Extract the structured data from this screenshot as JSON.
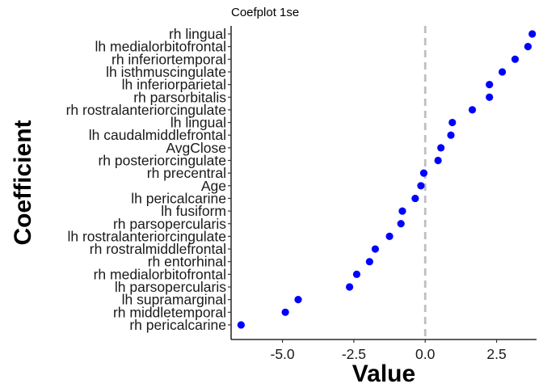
{
  "chart_data": {
    "type": "scatter",
    "title": "Coefplot 1se",
    "xlabel": "Value",
    "ylabel": "Coefficient",
    "xlim": [
      -6.8,
      3.9
    ],
    "x_ticks": [
      -5.0,
      -2.5,
      0.0,
      2.5
    ],
    "x_tick_labels": [
      "-5.0",
      "-2.5",
      "0.0",
      "2.5"
    ],
    "reference_line": {
      "x": 0.0,
      "style": "dashed",
      "color": "#bfbfbf"
    },
    "point_color": "#0000ff",
    "grid": false,
    "legend": "none",
    "categories": [
      "rh lingual",
      "lh medialorbitofrontal",
      "rh inferiortemporal",
      "lh isthmuscingulate",
      "lh inferiorparietal",
      "rh parsorbitalis",
      "rh rostralanteriorcingulate",
      "lh lingual",
      "lh caudalmiddlefrontal",
      "AvgClose",
      "rh posteriorcingulate",
      "rh precentral",
      "Age",
      "lh pericalcarine",
      "lh fusiform",
      "rh parsopercularis",
      "lh rostralanteriorcingulate",
      "rh rostralmiddlefrontal",
      "rh entorhinal",
      "rh medialorbitofrontal",
      "lh parsopercularis",
      "lh supramarginal",
      "rh middletemporal",
      "rh pericalcarine"
    ],
    "values": [
      3.75,
      3.6,
      3.15,
      2.7,
      2.25,
      2.25,
      1.65,
      0.95,
      0.9,
      0.55,
      0.45,
      -0.05,
      -0.15,
      -0.35,
      -0.8,
      -0.85,
      -1.25,
      -1.75,
      -1.95,
      -2.4,
      -2.65,
      -4.45,
      -4.9,
      -6.45
    ]
  }
}
